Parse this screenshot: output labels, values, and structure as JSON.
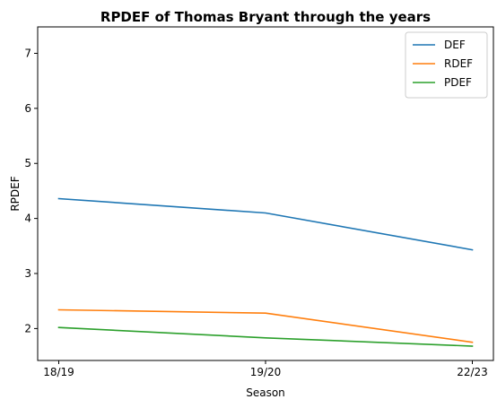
{
  "chart_data": {
    "type": "line",
    "title": "RPDEF of Thomas Bryant through the years",
    "xlabel": "Season",
    "ylabel": "RPDEF",
    "categories": [
      "18/19",
      "19/20",
      "22/23"
    ],
    "ylim": [
      1.42,
      7.48
    ],
    "yticks": [
      "2",
      "3",
      "4",
      "5",
      "6",
      "7"
    ],
    "grid": false,
    "legend_position": "top-right",
    "series": [
      {
        "name": "DEF",
        "color": "#1f77b4",
        "values": [
          4.36,
          4.1,
          3.43
        ]
      },
      {
        "name": "RDEF",
        "color": "#ff7f0e",
        "values": [
          2.34,
          2.28,
          1.75
        ]
      },
      {
        "name": "PDEF",
        "color": "#2ca02c",
        "values": [
          2.02,
          1.83,
          1.68
        ]
      }
    ]
  }
}
